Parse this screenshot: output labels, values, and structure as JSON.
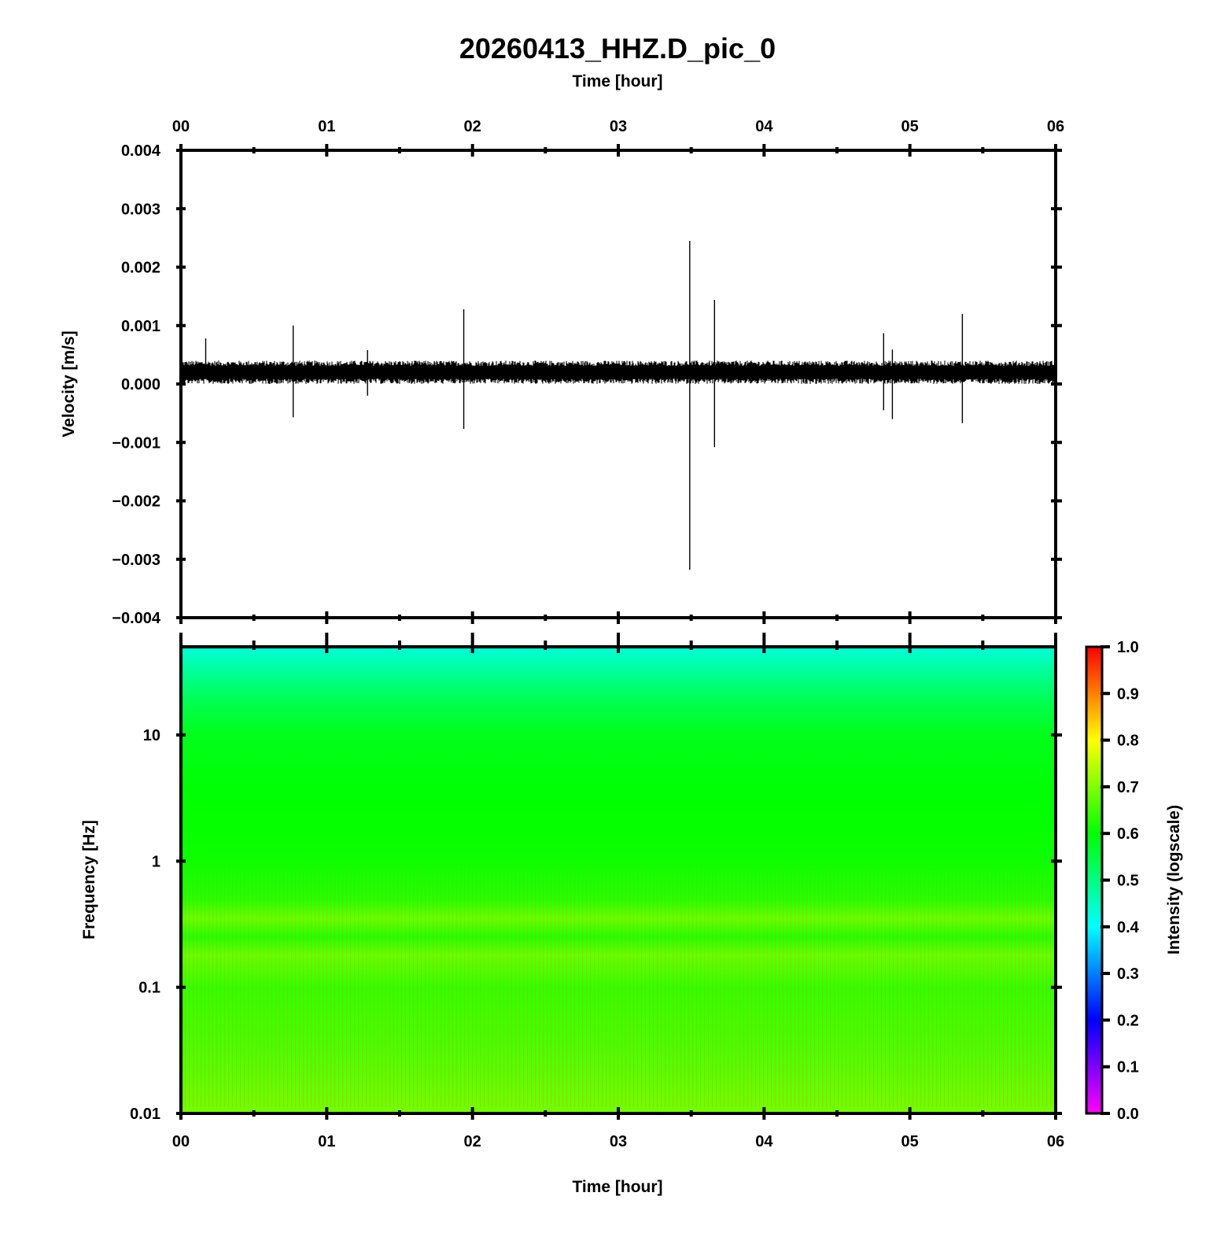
{
  "title": "20260413_HHZ.D_pic_0",
  "chart_data": [
    {
      "type": "line",
      "panel": "waveform",
      "xlabel": "Time [hour]",
      "ylabel": "Velocity [m/s]",
      "xticks": [
        "00",
        "01",
        "02",
        "03",
        "04",
        "05",
        "06"
      ],
      "yticks": [
        "0.004",
        "0.003",
        "0.002",
        "0.001",
        "0.000",
        "−0.001",
        "−0.002",
        "−0.003",
        "−0.004"
      ],
      "xlim": [
        0,
        6
      ],
      "ylim": [
        -0.004,
        0.004
      ],
      "baseline": 0.0002,
      "noise_amplitude": 0.0002,
      "spikes": [
        {
          "t": 0.17,
          "max": 0.00078,
          "min": 0.0001
        },
        {
          "t": 0.77,
          "max": 0.001,
          "min": -0.00057
        },
        {
          "t": 1.28,
          "max": 0.00058,
          "min": -0.0002
        },
        {
          "t": 1.94,
          "max": 0.00128,
          "min": -0.00077
        },
        {
          "t": 3.49,
          "max": 0.00245,
          "min": -0.00318
        },
        {
          "t": 3.66,
          "max": 0.00144,
          "min": -0.00108
        },
        {
          "t": 4.82,
          "max": 0.00087,
          "min": -0.00045
        },
        {
          "t": 4.88,
          "max": 0.00059,
          "min": -0.0006
        },
        {
          "t": 5.36,
          "max": 0.0012,
          "min": -0.00067
        }
      ]
    },
    {
      "type": "heatmap",
      "panel": "spectrogram",
      "xlabel": "Time [hour]",
      "ylabel": "Frequency [Hz]",
      "xticks": [
        "00",
        "01",
        "02",
        "03",
        "04",
        "05",
        "06"
      ],
      "yticks": [
        "10",
        "1",
        "0.1",
        "0.01"
      ],
      "xlim": [
        0,
        6
      ],
      "ylim": [
        0.01,
        50
      ],
      "yscale": "log",
      "intensity_profile": [
        {
          "freq": 50,
          "value": 0.43
        },
        {
          "freq": 35,
          "value": 0.47
        },
        {
          "freq": 20,
          "value": 0.53
        },
        {
          "freq": 10,
          "value": 0.58
        },
        {
          "freq": 3,
          "value": 0.6
        },
        {
          "freq": 1,
          "value": 0.61
        },
        {
          "freq": 0.5,
          "value": 0.63
        },
        {
          "freq": 0.35,
          "value": 0.68
        },
        {
          "freq": 0.25,
          "value": 0.63
        },
        {
          "freq": 0.18,
          "value": 0.68
        },
        {
          "freq": 0.1,
          "value": 0.64
        },
        {
          "freq": 0.03,
          "value": 0.66
        },
        {
          "freq": 0.01,
          "value": 0.69
        }
      ],
      "colorbar": {
        "label": "Intensity (logscale)",
        "ticks": [
          "1.0",
          "0.9",
          "0.8",
          "0.7",
          "0.6",
          "0.5",
          "0.4",
          "0.3",
          "0.2",
          "0.1",
          "0.0"
        ],
        "range": [
          0,
          1
        ],
        "colormap": [
          "#ff00ff",
          "#0000ff",
          "#00ffff",
          "#00ff00",
          "#ffff00",
          "#ff0000"
        ]
      }
    }
  ]
}
